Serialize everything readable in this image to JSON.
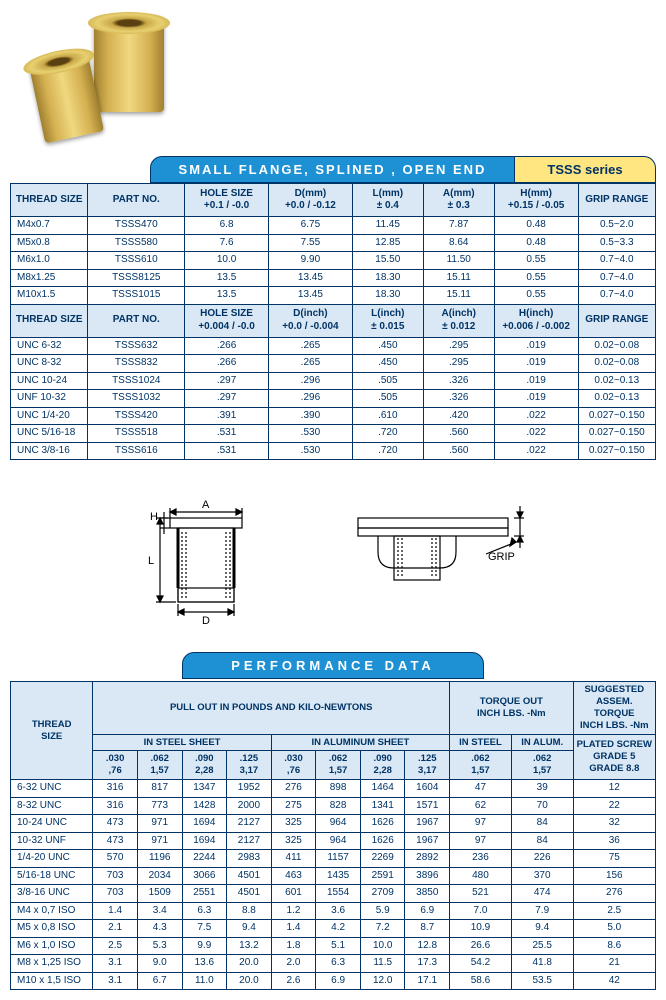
{
  "titleBar": "SMALL FLANGE, SPLINED , OPEN END",
  "seriesBar": "TSSS series",
  "specHeaders1": {
    "threadSize": "THREAD SIZE",
    "partNo": "PART NO.",
    "holeSize": "HOLE SIZE +0.1 / -0.0",
    "dmm": "D(mm) +0.0 / -0.12",
    "lmm": "L(mm) ± 0.4",
    "amm": "A(mm) ± 0.3",
    "hmm": "H(mm) +0.15 / -0.05",
    "grip": "GRIP RANGE"
  },
  "specRows1": [
    [
      "M4x0.7",
      "TSSS470",
      "6.8",
      "6.75",
      "11.45",
      "7.87",
      "0.48",
      "0.5~2.0"
    ],
    [
      "M5x0.8",
      "TSSS580",
      "7.6",
      "7.55",
      "12.85",
      "8.64",
      "0.48",
      "0.5~3.3"
    ],
    [
      "M6x1.0",
      "TSSS610",
      "10.0",
      "9.90",
      "15.50",
      "11.50",
      "0.55",
      "0.7~4.0"
    ],
    [
      "M8x1.25",
      "TSSS8125",
      "13.5",
      "13.45",
      "18.30",
      "15.11",
      "0.55",
      "0.7~4.0"
    ],
    [
      "M10x1.5",
      "TSSS1015",
      "13.5",
      "13.45",
      "18.30",
      "15.11",
      "0.55",
      "0.7~4.0"
    ]
  ],
  "specHeaders2": {
    "threadSize": "THREAD SIZE",
    "partNo": "PART NO.",
    "holeSize": "HOLE SIZE +0.004 / -0.0",
    "dinch": "D(inch) +0.0 / -0.004",
    "linch": "L(inch) ± 0.015",
    "ainch": "A(inch) ± 0.012",
    "hinch": "H(inch) +0.006 / -0.002",
    "grip": "GRIP RANGE"
  },
  "specRows2": [
    [
      "UNC 6-32",
      "TSSS632",
      ".266",
      ".265",
      ".450",
      ".295",
      ".019",
      "0.02~0.08"
    ],
    [
      "UNC 8-32",
      "TSSS832",
      ".266",
      ".265",
      ".450",
      ".295",
      ".019",
      "0.02~0.08"
    ],
    [
      "UNC 10-24",
      "TSSS1024",
      ".297",
      ".296",
      ".505",
      ".326",
      ".019",
      "0.02~0.13"
    ],
    [
      "UNF 10-32",
      "TSSS1032",
      ".297",
      ".296",
      ".505",
      ".326",
      ".019",
      "0.02~0.13"
    ],
    [
      "UNC 1/4-20",
      "TSSS420",
      ".391",
      ".390",
      ".610",
      ".420",
      ".022",
      "0.027~0.150"
    ],
    [
      "UNC 5/16-18",
      "TSSS518",
      ".531",
      ".530",
      ".720",
      ".560",
      ".022",
      "0.027~0.150"
    ],
    [
      "UNC 3/8-16",
      "TSSS616",
      ".531",
      ".530",
      ".720",
      ".560",
      ".022",
      "0.027~0.150"
    ]
  ],
  "diagramLabels": {
    "H": "H",
    "A": "A",
    "L": "L",
    "D": "D",
    "grip": "GRIP"
  },
  "perfTitle": "PERFORMANCE   DATA",
  "perfHeaders": {
    "threadSize": "THREAD SIZE",
    "pullOut": "PULL OUT IN POUNDS AND KILO-NEWTONS",
    "inSteel": "IN STEEL SHEET",
    "inAlum": "IN ALUMINUM SHEET",
    "torqueOut": "TORQUE OUT INCH LBS. -Nm",
    "torqueSteel": "IN STEEL",
    "torqueAlum": "IN ALUM.",
    "suggested": "SUGGESTED ASSEM. TORQUE INCH LBS. -Nm",
    "plated": "PLATED SCREW GRADE 5 GRADE 8.8",
    "c030": ".030 ,76",
    "c062": ".062 1,57",
    "c090": ".090 2,28",
    "c125": ".125 3,17"
  },
  "perfRows": [
    [
      "6-32 UNC",
      "316",
      "817",
      "1347",
      "1952",
      "276",
      "898",
      "1464",
      "1604",
      "47",
      "39",
      "12"
    ],
    [
      "8-32 UNC",
      "316",
      "773",
      "1428",
      "2000",
      "275",
      "828",
      "1341",
      "1571",
      "62",
      "70",
      "22"
    ],
    [
      "10-24 UNC",
      "473",
      "971",
      "1694",
      "2127",
      "325",
      "964",
      "1626",
      "1967",
      "97",
      "84",
      "32"
    ],
    [
      "10-32 UNF",
      "473",
      "971",
      "1694",
      "2127",
      "325",
      "964",
      "1626",
      "1967",
      "97",
      "84",
      "36"
    ],
    [
      "1/4-20 UNC",
      "570",
      "1196",
      "2244",
      "2983",
      "411",
      "1157",
      "2269",
      "2892",
      "236",
      "226",
      "75"
    ],
    [
      "5/16-18 UNC",
      "703",
      "2034",
      "3066",
      "4501",
      "463",
      "1435",
      "2591",
      "3896",
      "480",
      "370",
      "156"
    ],
    [
      "3/8-16 UNC",
      "703",
      "1509",
      "2551",
      "4501",
      "601",
      "1554",
      "2709",
      "3850",
      "521",
      "474",
      "276"
    ],
    [
      "M4 x 0,7 ISO",
      "1.4",
      "3.4",
      "6.3",
      "8.8",
      "1.2",
      "3.6",
      "5.9",
      "6.9",
      "7.0",
      "7.9",
      "2.5"
    ],
    [
      "M5 x 0,8 ISO",
      "2.1",
      "4.3",
      "7.5",
      "9.4",
      "1.4",
      "4.2",
      "7.2",
      "8.7",
      "10.9",
      "9.4",
      "5.0"
    ],
    [
      "M6 x 1,0 ISO",
      "2.5",
      "5.3",
      "9.9",
      "13.2",
      "1.8",
      "5.1",
      "10.0",
      "12.8",
      "26.6",
      "25.5",
      "8.6"
    ],
    [
      "M8 x 1,25 ISO",
      "3.1",
      "9.0",
      "13.6",
      "20.0",
      "2.0",
      "6.3",
      "11.5",
      "17.3",
      "54.2",
      "41.8",
      "21"
    ],
    [
      "M10 x 1,5 ISO",
      "3.1",
      "6.7",
      "11.0",
      "20.0",
      "2.6",
      "6.9",
      "12.0",
      "17.1",
      "58.6",
      "53.5",
      "42"
    ]
  ],
  "colors": {
    "blueBar": "#1e90d4",
    "headerBg": "#d9e8f4",
    "border": "#003366",
    "seriesBg": "#ffe680"
  }
}
